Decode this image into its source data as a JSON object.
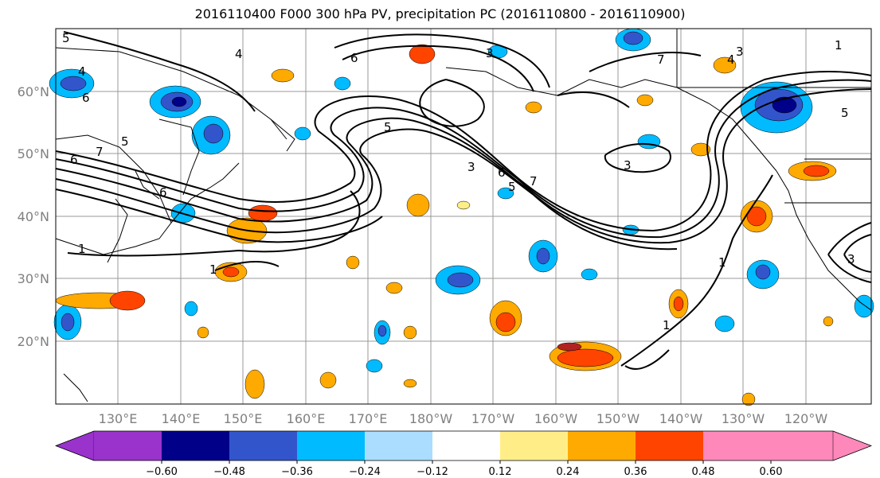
{
  "title": "2016110400 F000 300 hPa PV, precipitation PC (2016110800 - 2016110900)",
  "lat_labels": [
    "60°N",
    "50°N",
    "40°N",
    "30°N",
    "20°N"
  ],
  "lon_labels": [
    "130°E",
    "140°E",
    "150°E",
    "160°E",
    "170°E",
    "180°W",
    "170°W",
    "160°W",
    "150°W",
    "140°W",
    "130°W",
    "120°W"
  ],
  "contour_labels": [
    "5",
    "4",
    "6",
    "5",
    "6",
    "1",
    "1",
    "4",
    "5",
    "7",
    "3",
    "6",
    "5",
    "6",
    "7",
    "3",
    "1",
    "5",
    "1",
    "1",
    "3",
    "4",
    "3",
    "7",
    "6",
    "3"
  ],
  "colorbar": {
    "colors": [
      "#9933cc",
      "#000088",
      "#3355cc",
      "#00bbff",
      "#aaddff",
      "#ffffff",
      "#ffee88",
      "#ffaa00",
      "#ff4400",
      "#b22222",
      "#ff88bb"
    ],
    "ticks": [
      "−0.60",
      "−0.48",
      "−0.36",
      "−0.24",
      "−0.12",
      "0.12",
      "0.24",
      "0.36",
      "0.48",
      "0.60"
    ]
  }
}
